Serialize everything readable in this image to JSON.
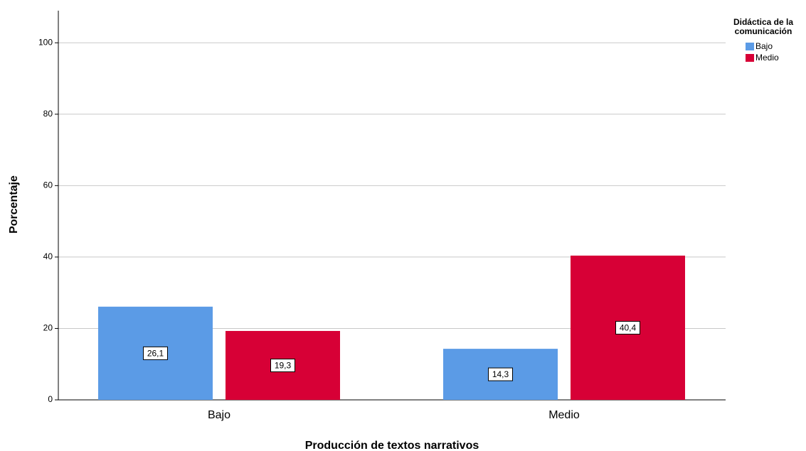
{
  "chart_data": {
    "type": "bar",
    "x_label": "Producción de textos narrativos",
    "y_label": "Porcentaje",
    "legend_title": "Didáctica de la comunicación",
    "legend_position": "top-right",
    "categories": [
      "Bajo",
      "Medio"
    ],
    "series": [
      {
        "name": "Bajo",
        "color": "#5b9be6",
        "values": [
          26.1,
          14.3
        ],
        "value_labels": [
          "26,1",
          "14,3"
        ]
      },
      {
        "name": "Medio",
        "color": "#d70036",
        "values": [
          19.3,
          40.4
        ],
        "value_labels": [
          "19,3",
          "40,4"
        ]
      }
    ],
    "ylim": [
      0,
      109
    ],
    "yticks": [
      0,
      20,
      40,
      60,
      80,
      100
    ],
    "grid": true
  }
}
